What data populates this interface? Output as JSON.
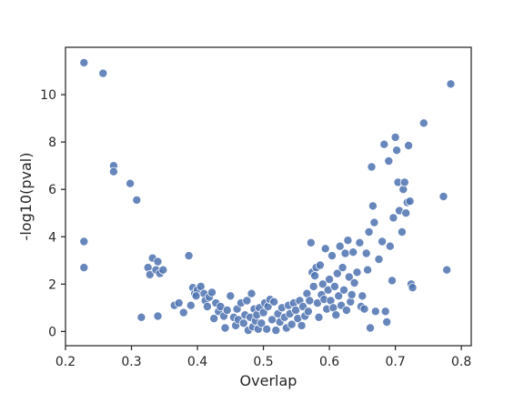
{
  "chart_data": {
    "type": "scatter",
    "title": "",
    "xlabel": "Overlap",
    "ylabel": "-log10(pval)",
    "xlim": [
      0.2,
      0.815
    ],
    "ylim": [
      -0.6,
      12.0
    ],
    "xticks": [
      0.2,
      0.3,
      0.4,
      0.5,
      0.6,
      0.7,
      0.8
    ],
    "xtick_labels": [
      "0.2",
      "0.3",
      "0.4",
      "0.5",
      "0.6",
      "0.7",
      "0.8"
    ],
    "yticks": [
      0,
      2,
      4,
      6,
      8,
      10
    ],
    "ytick_labels": [
      "0",
      "2",
      "4",
      "6",
      "8",
      "10"
    ],
    "grid": false,
    "legend": "none",
    "point_color": "#4c72b0",
    "points": [
      [
        0.228,
        11.35
      ],
      [
        0.257,
        10.9
      ],
      [
        0.228,
        3.8
      ],
      [
        0.228,
        2.7
      ],
      [
        0.273,
        7.0
      ],
      [
        0.273,
        6.75
      ],
      [
        0.298,
        6.25
      ],
      [
        0.308,
        5.55
      ],
      [
        0.315,
        0.6
      ],
      [
        0.325,
        2.7
      ],
      [
        0.328,
        2.4
      ],
      [
        0.332,
        3.1
      ],
      [
        0.337,
        2.6
      ],
      [
        0.34,
        2.95
      ],
      [
        0.343,
        2.45
      ],
      [
        0.348,
        2.6
      ],
      [
        0.34,
        0.65
      ],
      [
        0.365,
        1.1
      ],
      [
        0.372,
        1.2
      ],
      [
        0.379,
        0.8
      ],
      [
        0.387,
        3.2
      ],
      [
        0.39,
        1.1
      ],
      [
        0.393,
        1.85
      ],
      [
        0.396,
        1.6
      ],
      [
        0.4,
        1.75
      ],
      [
        0.405,
        1.9
      ],
      [
        0.41,
        1.6
      ],
      [
        0.412,
        1.3
      ],
      [
        0.415,
        1.05
      ],
      [
        0.418,
        1.45
      ],
      [
        0.422,
        1.65
      ],
      [
        0.425,
        0.55
      ],
      [
        0.428,
        1.2
      ],
      [
        0.398,
        1.5
      ],
      [
        0.432,
        0.85
      ],
      [
        0.435,
        1.05
      ],
      [
        0.44,
        0.65
      ],
      [
        0.442,
        0.15
      ],
      [
        0.445,
        0.9
      ],
      [
        0.45,
        1.5
      ],
      [
        0.455,
        0.6
      ],
      [
        0.458,
        0.25
      ],
      [
        0.46,
        0.95
      ],
      [
        0.462,
        0.5
      ],
      [
        0.466,
        1.2
      ],
      [
        0.47,
        0.35
      ],
      [
        0.472,
        0.7
      ],
      [
        0.475,
        1.3
      ],
      [
        0.477,
        0.05
      ],
      [
        0.48,
        0.6
      ],
      [
        0.482,
        1.6
      ],
      [
        0.484,
        0.2
      ],
      [
        0.486,
        0.95
      ],
      [
        0.488,
        0.45
      ],
      [
        0.49,
        0.7
      ],
      [
        0.492,
        0.1
      ],
      [
        0.494,
        1.0
      ],
      [
        0.497,
        0.35
      ],
      [
        0.5,
        0.8
      ],
      [
        0.502,
        1.2
      ],
      [
        0.505,
        0.1
      ],
      [
        0.507,
        1.05
      ],
      [
        0.51,
        1.35
      ],
      [
        0.513,
        0.5
      ],
      [
        0.516,
        1.25
      ],
      [
        0.519,
        0.05
      ],
      [
        0.522,
        0.75
      ],
      [
        0.525,
        0.4
      ],
      [
        0.528,
        1.0
      ],
      [
        0.532,
        0.6
      ],
      [
        0.535,
        0.15
      ],
      [
        0.538,
        1.1
      ],
      [
        0.54,
        0.75
      ],
      [
        0.543,
        0.3
      ],
      [
        0.546,
        1.2
      ],
      [
        0.549,
        0.9
      ],
      [
        0.552,
        0.55
      ],
      [
        0.555,
        1.3
      ],
      [
        0.558,
        0.25
      ],
      [
        0.56,
        1.05
      ],
      [
        0.563,
        0.65
      ],
      [
        0.566,
        1.6
      ],
      [
        0.568,
        0.85
      ],
      [
        0.57,
        1.3
      ],
      [
        0.572,
        3.75
      ],
      [
        0.574,
        2.5
      ],
      [
        0.576,
        1.9
      ],
      [
        0.578,
        2.35
      ],
      [
        0.58,
        2.7
      ],
      [
        0.582,
        1.2
      ],
      [
        0.584,
        0.6
      ],
      [
        0.586,
        2.8
      ],
      [
        0.588,
        1.55
      ],
      [
        0.59,
        2.0
      ],
      [
        0.592,
        1.35
      ],
      [
        0.594,
        3.5
      ],
      [
        0.596,
        0.95
      ],
      [
        0.598,
        1.75
      ],
      [
        0.6,
        2.2
      ],
      [
        0.602,
        1.3
      ],
      [
        0.604,
        3.2
      ],
      [
        0.606,
        1.0
      ],
      [
        0.608,
        1.9
      ],
      [
        0.61,
        0.7
      ],
      [
        0.612,
        2.45
      ],
      [
        0.614,
        1.5
      ],
      [
        0.616,
        3.6
      ],
      [
        0.618,
        1.1
      ],
      [
        0.62,
        2.7
      ],
      [
        0.622,
        1.75
      ],
      [
        0.624,
        3.3
      ],
      [
        0.626,
        0.9
      ],
      [
        0.628,
        3.85
      ],
      [
        0.63,
        2.3
      ],
      [
        0.632,
        1.25
      ],
      [
        0.634,
        1.55
      ],
      [
        0.636,
        3.35
      ],
      [
        0.638,
        2.05
      ],
      [
        0.642,
        2.5
      ],
      [
        0.646,
        3.75
      ],
      [
        0.648,
        1.05
      ],
      [
        0.65,
        1.5
      ],
      [
        0.653,
        0.95
      ],
      [
        0.656,
        3.3
      ],
      [
        0.658,
        2.6
      ],
      [
        0.66,
        4.2
      ],
      [
        0.662,
        0.15
      ],
      [
        0.664,
        6.95
      ],
      [
        0.666,
        5.3
      ],
      [
        0.668,
        4.6
      ],
      [
        0.67,
        0.85
      ],
      [
        0.675,
        3.05
      ],
      [
        0.68,
        3.8
      ],
      [
        0.683,
        7.9
      ],
      [
        0.685,
        0.85
      ],
      [
        0.687,
        0.4
      ],
      [
        0.69,
        7.2
      ],
      [
        0.692,
        3.6
      ],
      [
        0.695,
        2.15
      ],
      [
        0.697,
        4.8
      ],
      [
        0.7,
        8.2
      ],
      [
        0.702,
        7.65
      ],
      [
        0.704,
        6.3
      ],
      [
        0.706,
        5.1
      ],
      [
        0.71,
        4.2
      ],
      [
        0.712,
        6.0
      ],
      [
        0.714,
        6.3
      ],
      [
        0.716,
        5.0
      ],
      [
        0.718,
        5.45
      ],
      [
        0.72,
        7.85
      ],
      [
        0.722,
        5.5
      ],
      [
        0.724,
        2.0
      ],
      [
        0.726,
        1.85
      ],
      [
        0.743,
        8.8
      ],
      [
        0.773,
        5.7
      ],
      [
        0.778,
        2.6
      ],
      [
        0.784,
        10.45
      ]
    ]
  }
}
